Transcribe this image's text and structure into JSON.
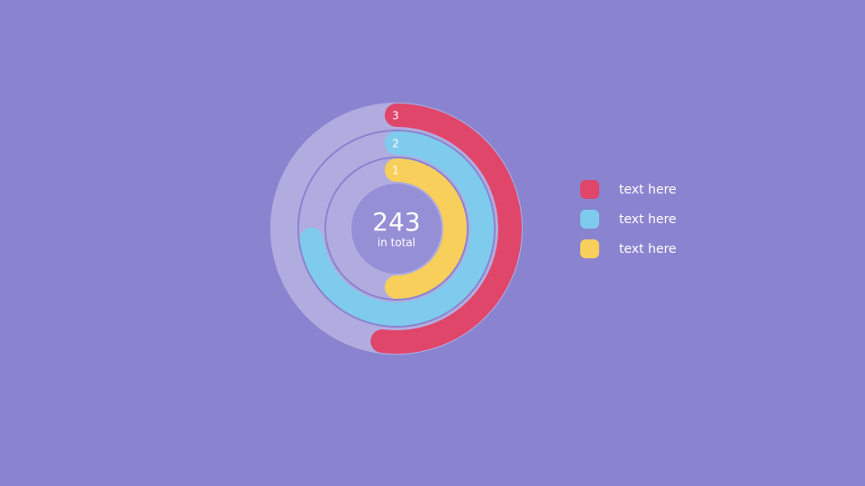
{
  "chart_data": {
    "type": "radial-bar",
    "total": 243,
    "total_label": "in total",
    "ylim": [
      0,
      100
    ],
    "series": [
      {
        "name": "text here",
        "label": "3",
        "color": "#e0456a",
        "values": [
          52
        ]
      },
      {
        "name": "text here",
        "label": "2",
        "color": "#7ecbee",
        "values": [
          73
        ]
      },
      {
        "name": "text here",
        "label": "1",
        "color": "#f8cf5a",
        "values": [
          50
        ]
      }
    ]
  }
}
